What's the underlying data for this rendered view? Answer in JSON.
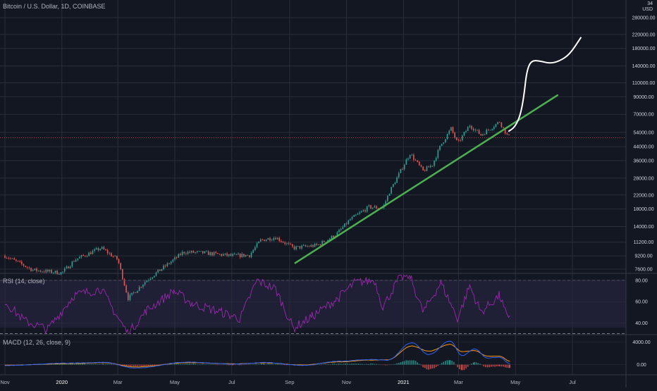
{
  "header": {
    "title": "Bitcoin / U.S. Dollar, 1D, COINBASE",
    "currency": "USD",
    "top_price_partial": "34"
  },
  "rsi_panel": {
    "label": "RSI (14, close)",
    "ticks": [
      "80.00",
      "60.00",
      "40.00"
    ]
  },
  "macd_panel": {
    "label": "MACD (12, 26, close, 9)",
    "ticks": [
      "4000.00",
      "0.00"
    ]
  },
  "colors": {
    "background": "#131722",
    "grid": "#2a2e39",
    "up": "#26a69a",
    "down": "#ef5350",
    "trendline": "#4caf50",
    "projection": "#ffffff",
    "rsi": "#9c27b0",
    "macd": "#2962ff",
    "signal": "#ff9800"
  },
  "chart_data": [
    {
      "type": "candlestick",
      "title": "Bitcoin / U.S. Dollar, 1D, COINBASE",
      "y_scale": "log",
      "y_ticks": [
        7600,
        9200,
        11200,
        14000,
        18000,
        22000,
        28000,
        36000,
        44000,
        54000,
        70000,
        90000,
        110000,
        140000,
        180000,
        220000,
        280000
      ],
      "y_tick_labels": [
        "7600.00",
        "9200.00",
        "11200.00",
        "14000.00",
        "18000.00",
        "22000.00",
        "28000.00",
        "36000.00",
        "44000.00",
        "54000.00",
        "70000.00",
        "90000.00",
        "110000.00",
        "140000.00",
        "180000.00",
        "220000.00",
        "280000.00"
      ],
      "x_tick_labels": [
        "Nov",
        "2020",
        "Mar",
        "May",
        "Jul",
        "Sep",
        "Nov",
        "2021",
        "Mar",
        "May",
        "Jul"
      ],
      "price_path": [
        [
          "2019-11-01",
          9200
        ],
        [
          "2019-12-01",
          7500
        ],
        [
          "2020-01-01",
          7200
        ],
        [
          "2020-01-15",
          8700
        ],
        [
          "2020-02-12",
          10300
        ],
        [
          "2020-03-01",
          8700
        ],
        [
          "2020-03-12",
          5000
        ],
        [
          "2020-04-01",
          6500
        ],
        [
          "2020-05-01",
          8800
        ],
        [
          "2020-05-10",
          9700
        ],
        [
          "2020-06-01",
          9600
        ],
        [
          "2020-07-01",
          9200
        ],
        [
          "2020-07-20",
          9300
        ],
        [
          "2020-08-01",
          11500
        ],
        [
          "2020-08-17",
          12000
        ],
        [
          "2020-09-05",
          10300
        ],
        [
          "2020-10-01",
          10700
        ],
        [
          "2020-10-21",
          12500
        ],
        [
          "2020-11-05",
          15500
        ],
        [
          "2020-11-25",
          18500
        ],
        [
          "2020-12-10",
          18300
        ],
        [
          "2020-12-17",
          23000
        ],
        [
          "2021-01-08",
          40000
        ],
        [
          "2021-01-22",
          31000
        ],
        [
          "2021-02-01",
          34000
        ],
        [
          "2021-02-10",
          45000
        ],
        [
          "2021-02-21",
          57000
        ],
        [
          "2021-02-28",
          46000
        ],
        [
          "2021-03-13",
          60000
        ],
        [
          "2021-03-25",
          52000
        ],
        [
          "2021-04-14",
          63000
        ],
        [
          "2021-04-22",
          52000
        ],
        [
          "2021-04-25",
          50000
        ]
      ],
      "trendline": [
        [
          "2020-09-07",
          8300
        ],
        [
          "2021-06-15",
          92000
        ]
      ],
      "projection": [
        [
          "2021-04-24",
          55000
        ],
        [
          "2021-04-30",
          58000
        ],
        [
          "2021-05-06",
          68000
        ],
        [
          "2021-05-10",
          90000
        ],
        [
          "2021-05-13",
          130000
        ],
        [
          "2021-05-18",
          152000
        ],
        [
          "2021-05-28",
          150000
        ],
        [
          "2021-06-07",
          145000
        ],
        [
          "2021-06-17",
          150000
        ],
        [
          "2021-06-28",
          165000
        ],
        [
          "2021-07-10",
          210000
        ]
      ]
    },
    {
      "type": "line",
      "title": "RSI (14, close)",
      "ylim": [
        29,
        86
      ],
      "bands": [
        80,
        30
      ],
      "y_ticks": [
        80,
        60,
        40
      ],
      "x": [
        "2019-11-01",
        "2019-11-22",
        "2019-12-17",
        "2020-01-14",
        "2020-02-12",
        "2020-03-01",
        "2020-03-12",
        "2020-04-01",
        "2020-04-30",
        "2020-05-20",
        "2020-06-20",
        "2020-07-10",
        "2020-07-28",
        "2020-08-17",
        "2020-09-05",
        "2020-09-25",
        "2020-10-21",
        "2020-11-10",
        "2020-12-01",
        "2020-12-10",
        "2020-12-28",
        "2021-01-08",
        "2021-01-22",
        "2021-02-10",
        "2021-02-28",
        "2021-03-13",
        "2021-03-25",
        "2021-04-14",
        "2021-04-22",
        "2021-04-25"
      ],
      "series": [
        {
          "values": [
            60,
            42,
            34,
            66,
            72,
            45,
            30,
            52,
            70,
            58,
            50,
            44,
            80,
            72,
            35,
            46,
            62,
            78,
            80,
            55,
            83,
            84,
            50,
            78,
            44,
            75,
            50,
            66,
            45,
            47
          ]
        }
      ]
    },
    {
      "type": "line",
      "title": "MACD (12, 26, close, 9)",
      "ylim": [
        -1800,
        5200
      ],
      "y_ticks": [
        4000,
        0
      ],
      "x": [
        "2019-11-01",
        "2020-01-15",
        "2020-02-15",
        "2020-03-20",
        "2020-05-15",
        "2020-07-05",
        "2020-08-05",
        "2020-09-15",
        "2020-10-25",
        "2020-11-25",
        "2020-12-15",
        "2021-01-10",
        "2021-01-28",
        "2021-02-20",
        "2021-03-05",
        "2021-03-18",
        "2021-04-01",
        "2021-04-14",
        "2021-04-25"
      ],
      "series": [
        {
          "values": [
            -150,
            300,
            400,
            -600,
            450,
            100,
            380,
            -120,
            600,
            900,
            800,
            3900,
            1800,
            4200,
            1600,
            2800,
            1200,
            1300,
            200
          ]
        },
        {
          "values": [
            -100,
            200,
            350,
            -400,
            350,
            150,
            300,
            -50,
            500,
            800,
            850,
            3300,
            2400,
            3600,
            2300,
            2500,
            1500,
            1500,
            600
          ]
        }
      ]
    }
  ]
}
